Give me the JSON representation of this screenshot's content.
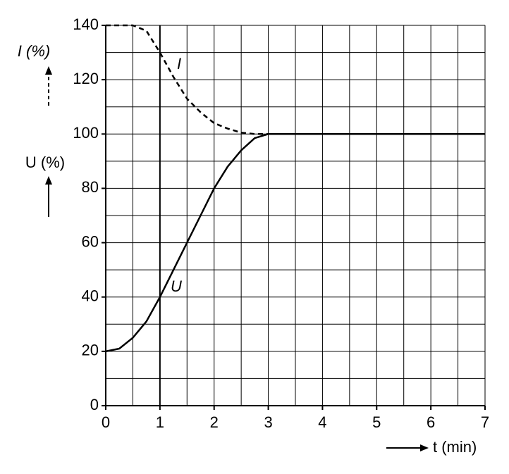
{
  "chart_data": {
    "type": "line",
    "x": [
      0,
      0.25,
      0.5,
      0.75,
      1,
      1.25,
      1.5,
      1.75,
      2,
      2.25,
      2.5,
      2.75,
      3,
      7
    ],
    "series": [
      {
        "name": "I",
        "color": "#000000",
        "style": "dashed",
        "values": [
          140,
          140,
          140,
          138,
          130,
          121,
          113,
          108,
          104,
          102,
          100.5,
          100,
          100,
          100
        ]
      },
      {
        "name": "U",
        "color": "#000000",
        "style": "solid",
        "values": [
          20,
          21,
          25,
          31,
          40,
          50,
          60,
          70,
          80,
          88,
          94,
          98.5,
          100,
          100
        ]
      }
    ],
    "y_labels": [
      "I (%)",
      "U (%)"
    ],
    "x_label": "t (min)",
    "xlim": [
      0,
      7
    ],
    "xticks": [
      0,
      1,
      2,
      3,
      4,
      5,
      6,
      7
    ],
    "ylim": [
      0,
      140
    ],
    "yticks": [
      0,
      20,
      40,
      60,
      80,
      100,
      120,
      140
    ],
    "vlines": [
      1
    ],
    "grid": true
  }
}
